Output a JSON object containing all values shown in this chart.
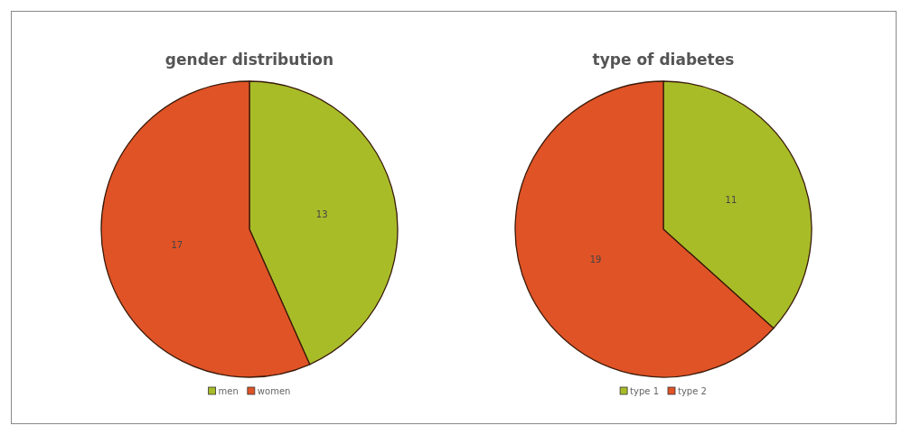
{
  "chart_data": [
    {
      "type": "pie",
      "title": "gender distribution",
      "categories": [
        "men",
        "women"
      ],
      "values": [
        13,
        17
      ],
      "colors": [
        "#a8bc28",
        "#e05326"
      ],
      "data_labels": true,
      "legend": "bottom"
    },
    {
      "type": "pie",
      "title": "type of diabetes",
      "categories": [
        "type 1",
        "type 2"
      ],
      "values": [
        11,
        19
      ],
      "colors": [
        "#a8bc28",
        "#e05326"
      ],
      "data_labels": true,
      "legend": "bottom"
    }
  ]
}
